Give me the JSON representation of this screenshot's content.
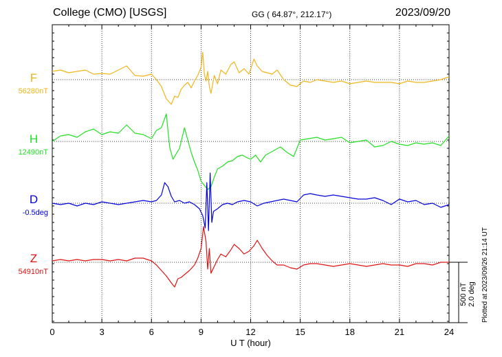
{
  "header": {
    "station": "College (CMO)  [USGS]",
    "coords": "GG ( 64.87°, 212.17°)",
    "date": "2023/09/20"
  },
  "footer": {
    "plotted": "Plotted at 2023/09/26 21:14 UT",
    "scale_nt": "500 nT",
    "scale_deg": "2.0 deg"
  },
  "colors": {
    "F": "#f2b418",
    "H": "#22e022",
    "D": "#0000dd",
    "Z": "#e01010"
  },
  "chart_data": {
    "type": "line",
    "xlabel": "U T (hour)",
    "xlim": [
      0,
      24
    ],
    "xticks": [
      0,
      3,
      6,
      9,
      12,
      15,
      18,
      21,
      24
    ],
    "grid": true,
    "series": [
      {
        "name": "F",
        "baseline_label": "56280nT",
        "x": [
          0,
          0.5,
          1,
          1.5,
          2,
          2.5,
          3,
          3.5,
          4,
          4.5,
          5,
          5.5,
          6,
          6.3,
          6.6,
          6.9,
          7.2,
          7.4,
          7.6,
          7.8,
          8,
          8.2,
          8.4,
          8.6,
          8.8,
          9,
          9.1,
          9.2,
          9.3,
          9.4,
          9.5,
          9.6,
          9.8,
          10,
          10.2,
          10.5,
          10.8,
          11,
          11.3,
          11.6,
          11.9,
          12.2,
          12.4,
          12.7,
          13,
          13.3,
          13.6,
          14,
          14.4,
          14.8,
          15.2,
          15.6,
          16,
          16.5,
          17,
          17.5,
          18,
          18.5,
          19,
          19.5,
          20,
          20.5,
          21,
          21.5,
          22,
          22.5,
          23,
          23.5,
          24
        ],
        "y": [
          12,
          14,
          10,
          12,
          14,
          8,
          9,
          8,
          14,
          20,
          6,
          5,
          8,
          0,
          -10,
          -28,
          -36,
          -24,
          -26,
          -14,
          -8,
          -4,
          -12,
          -2,
          6,
          18,
          40,
          8,
          -2,
          12,
          -10,
          -20,
          6,
          -6,
          14,
          8,
          22,
          26,
          10,
          16,
          8,
          30,
          20,
          12,
          10,
          8,
          14,
          0,
          -8,
          -10,
          -2,
          -4,
          0,
          -2,
          -4,
          -2,
          -6,
          -4,
          -2,
          -4,
          -4,
          -4,
          -6,
          -2,
          -4,
          -4,
          -2,
          0,
          4
        ]
      },
      {
        "name": "H",
        "baseline_label": "12490nT",
        "x": [
          0,
          0.5,
          1,
          1.5,
          2,
          2.5,
          3,
          3.5,
          4,
          4.5,
          5,
          5.5,
          6,
          6.3,
          6.6,
          6.9,
          7.1,
          7.3,
          7.5,
          7.7,
          8,
          8.2,
          8.4,
          8.6,
          8.8,
          9,
          9.2,
          9.4,
          9.6,
          9.8,
          10,
          10.3,
          10.6,
          10.9,
          11.2,
          11.5,
          11.8,
          12,
          12.3,
          12.6,
          12.9,
          13.2,
          13.5,
          13.8,
          14.2,
          14.6,
          15,
          15.5,
          16,
          16.5,
          17,
          17.5,
          18,
          18.5,
          19,
          19.5,
          20,
          20.5,
          21,
          21.5,
          22,
          22.5,
          23,
          23.5,
          24
        ],
        "y": [
          0,
          8,
          10,
          6,
          14,
          18,
          10,
          14,
          12,
          24,
          12,
          10,
          4,
          16,
          20,
          40,
          -8,
          -26,
          -18,
          -10,
          20,
          2,
          -16,
          -30,
          -42,
          -58,
          -64,
          -70,
          -66,
          -52,
          -40,
          -36,
          -30,
          -28,
          -22,
          -20,
          -24,
          -26,
          -20,
          -30,
          -20,
          -16,
          -12,
          -8,
          -16,
          -22,
          2,
          4,
          6,
          2,
          4,
          6,
          -2,
          0,
          2,
          -8,
          -6,
          0,
          -4,
          -6,
          -2,
          -4,
          -2,
          -6,
          8
        ]
      },
      {
        "name": "D",
        "baseline_label": "-0.5deg",
        "x": [
          0,
          0.5,
          1,
          1.5,
          2,
          2.5,
          3,
          3.5,
          4,
          4.5,
          5,
          5.5,
          6,
          6.3,
          6.6,
          6.8,
          7,
          7.2,
          7.4,
          7.7,
          8,
          8.3,
          8.6,
          8.9,
          9.1,
          9.25,
          9.35,
          9.45,
          9.55,
          9.65,
          9.75,
          10,
          10.3,
          10.6,
          10.9,
          11.2,
          11.6,
          12,
          12.4,
          12.8,
          13.2,
          13.6,
          14,
          14.4,
          14.8,
          15.2,
          15.6,
          16,
          16.5,
          17,
          17.5,
          18,
          18.5,
          19,
          19.5,
          20,
          20.5,
          21,
          21.5,
          22,
          22.5,
          23,
          23.5,
          24
        ],
        "y": [
          0,
          -2,
          0,
          -4,
          0,
          -2,
          2,
          0,
          -2,
          0,
          2,
          4,
          2,
          4,
          12,
          30,
          24,
          10,
          2,
          4,
          0,
          2,
          -2,
          -8,
          -18,
          -36,
          30,
          -40,
          44,
          -28,
          -12,
          -8,
          -2,
          0,
          -2,
          2,
          4,
          2,
          -4,
          0,
          2,
          4,
          6,
          4,
          2,
          12,
          14,
          12,
          10,
          12,
          10,
          8,
          6,
          6,
          8,
          4,
          -2,
          6,
          2,
          4,
          -2,
          0,
          -6,
          -2
        ]
      },
      {
        "name": "Z",
        "baseline_label": "54910nT",
        "x": [
          0,
          0.5,
          1,
          1.5,
          2,
          2.5,
          3,
          3.5,
          4,
          4.5,
          5,
          5.5,
          6,
          6.3,
          6.6,
          6.9,
          7.2,
          7.4,
          7.6,
          7.8,
          8,
          8.3,
          8.6,
          8.8,
          9,
          9.15,
          9.3,
          9.4,
          9.5,
          9.6,
          9.8,
          10,
          10.2,
          10.5,
          10.8,
          11,
          11.3,
          11.6,
          11.9,
          12.2,
          12.4,
          12.7,
          13,
          13.3,
          13.6,
          14,
          14.4,
          14.8,
          15.2,
          15.6,
          16,
          16.5,
          17,
          17.5,
          18,
          18.5,
          19,
          19.5,
          20,
          20.5,
          21,
          21.5,
          22,
          22.5,
          23,
          23.5,
          24
        ],
        "y": [
          2,
          4,
          2,
          4,
          2,
          4,
          4,
          2,
          4,
          2,
          6,
          6,
          2,
          -4,
          -12,
          -20,
          -30,
          -36,
          -24,
          -22,
          -18,
          -12,
          -4,
          6,
          20,
          52,
          30,
          -10,
          20,
          -16,
          -6,
          4,
          12,
          8,
          18,
          26,
          20,
          12,
          16,
          24,
          32,
          20,
          10,
          2,
          -4,
          -4,
          -8,
          -10,
          -4,
          -2,
          -2,
          -4,
          -6,
          -4,
          -2,
          -4,
          -6,
          -4,
          -2,
          -4,
          -4,
          -6,
          -2,
          -2,
          -4,
          0,
          0
        ]
      }
    ]
  }
}
